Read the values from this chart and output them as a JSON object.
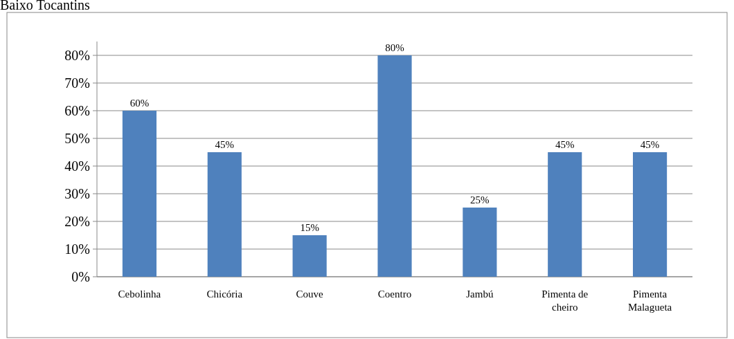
{
  "chart_data": {
    "type": "bar",
    "title": "Baixo Tocantins",
    "categories": [
      "Cebolinha",
      "Chicória",
      "Couve",
      "Coentro",
      "Jambú",
      "Pimenta de cheiro",
      "Pimenta Malagueta"
    ],
    "values": [
      60,
      45,
      15,
      80,
      25,
      45,
      45
    ],
    "value_labels": [
      "60%",
      "45%",
      "15%",
      "80%",
      "25%",
      "45%",
      "45%"
    ],
    "color": "#4f81bd",
    "ylim": [
      0,
      85
    ],
    "yticks": [
      {
        "value": 0,
        "label": "0%"
      },
      {
        "value": 10,
        "label": "10%"
      },
      {
        "value": 20,
        "label": "20%"
      },
      {
        "value": 30,
        "label": "30%"
      },
      {
        "value": 40,
        "label": "40%"
      },
      {
        "value": 50,
        "label": "50%"
      },
      {
        "value": 60,
        "label": "60%"
      },
      {
        "value": 70,
        "label": "70%"
      },
      {
        "value": 80,
        "label": "80%"
      }
    ],
    "grid": "y"
  }
}
